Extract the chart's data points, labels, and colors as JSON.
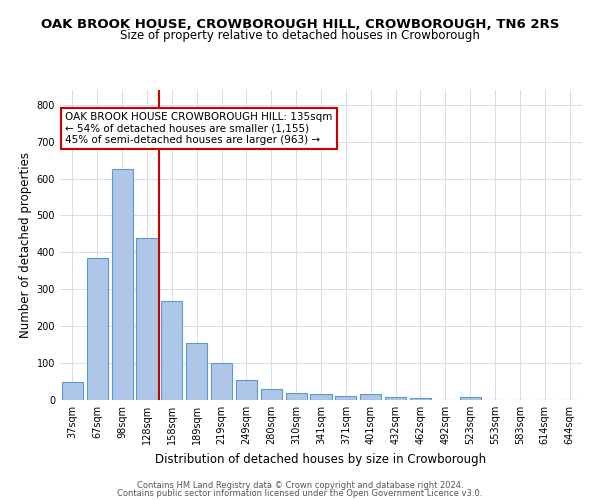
{
  "title": "OAK BROOK HOUSE, CROWBOROUGH HILL, CROWBOROUGH, TN6 2RS",
  "subtitle": "Size of property relative to detached houses in Crowborough",
  "xlabel": "Distribution of detached houses by size in Crowborough",
  "ylabel": "Number of detached properties",
  "bar_labels": [
    "37sqm",
    "67sqm",
    "98sqm",
    "128sqm",
    "158sqm",
    "189sqm",
    "219sqm",
    "249sqm",
    "280sqm",
    "310sqm",
    "341sqm",
    "371sqm",
    "401sqm",
    "432sqm",
    "462sqm",
    "492sqm",
    "523sqm",
    "553sqm",
    "583sqm",
    "614sqm",
    "644sqm"
  ],
  "bar_values": [
    50,
    385,
    625,
    440,
    268,
    155,
    100,
    55,
    30,
    18,
    15,
    12,
    15,
    8,
    5,
    0,
    8,
    0,
    0,
    0,
    0
  ],
  "bar_color": "#aec6e8",
  "bar_edge_color": "#5b9bd5",
  "vline_index": 3,
  "vline_color": "#cc0000",
  "annotation_text": "OAK BROOK HOUSE CROWBOROUGH HILL: 135sqm\n← 54% of detached houses are smaller (1,155)\n45% of semi-detached houses are larger (963) →",
  "annotation_box_color": "#ffffff",
  "annotation_box_edge": "#cc0000",
  "ylim": [
    0,
    840
  ],
  "yticks": [
    0,
    100,
    200,
    300,
    400,
    500,
    600,
    700,
    800
  ],
  "footer_line1": "Contains HM Land Registry data © Crown copyright and database right 2024.",
  "footer_line2": "Contains public sector information licensed under the Open Government Licence v3.0.",
  "title_fontsize": 9.5,
  "subtitle_fontsize": 8.5,
  "axis_label_fontsize": 8.5,
  "tick_fontsize": 7,
  "footer_fontsize": 6,
  "annotation_fontsize": 7.5
}
